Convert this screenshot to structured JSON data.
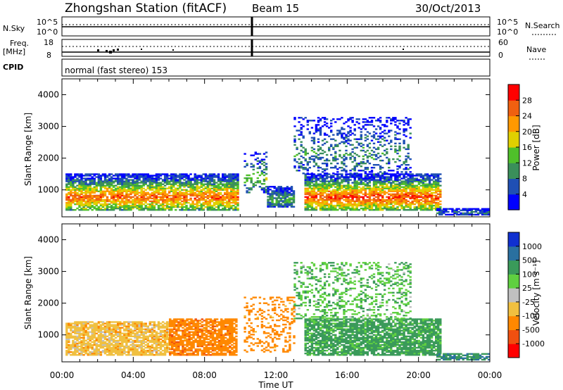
{
  "header": {
    "title": "Zhongshan Station (fitACF)",
    "beam": "Beam 15",
    "date": "30/Oct/2013"
  },
  "noise_panel": {
    "left_label": "N.Sky",
    "left_ticks": [
      "10^5",
      "10^0"
    ],
    "right_ticks": [
      "10^5",
      "10^0"
    ],
    "right_label": "N.Search"
  },
  "freq_panel": {
    "left_label_line1": "Freq.",
    "left_label_line2": "[MHz]",
    "left_ticks": [
      "18",
      "8"
    ],
    "right_ticks": [
      "60",
      "0"
    ],
    "right_label": "Nave",
    "cpid_label": "CPID"
  },
  "cpid_panel": {
    "text": "normal (fast stereo) 153"
  },
  "colors": {
    "power_scale": [
      "#0000ff",
      "#1f4fb4",
      "#3a8f5a",
      "#4fc02a",
      "#e0d000",
      "#ff9900",
      "#f06010",
      "#ff0000"
    ],
    "velocity_scale": [
      "#ff0000",
      "#f05010",
      "#ff8800",
      "#f0c040",
      "#c0c0c0",
      "#5fd040",
      "#3a9a5a",
      "#2a70a0",
      "#1030d0"
    ]
  },
  "chart_data": [
    {
      "type": "heatmap",
      "name": "power",
      "x": [
        "00:00",
        "04:00",
        "08:00",
        "12:00",
        "16:00",
        "20:00",
        "00:00"
      ],
      "xlabel": "Time UT",
      "ylabel": "Slant Range [km]",
      "yticks": [
        1000,
        2000,
        3000,
        4000
      ],
      "ylim": [
        150,
        4500
      ],
      "xlim_hours": [
        0,
        24
      ],
      "colorbar_label": "Power [dB]",
      "colorbar_ticks": [
        "4",
        "8",
        "12",
        "16",
        "20",
        "24",
        "28"
      ],
      "colorbar_range": [
        0,
        32
      ],
      "echo_regions": [
        {
          "t0": 0.2,
          "t1": 9.8,
          "r0": 350,
          "r1": 1500,
          "peak_dB": 26
        },
        {
          "t0": 10.2,
          "t1": 11.4,
          "r0": 900,
          "r1": 2200,
          "peak_dB": 14
        },
        {
          "t0": 11.5,
          "t1": 13.0,
          "r0": 450,
          "r1": 1100,
          "peak_dB": 12
        },
        {
          "t0": 13.6,
          "t1": 21.2,
          "r0": 350,
          "r1": 1500,
          "peak_dB": 28
        },
        {
          "t0": 13.0,
          "t1": 19.5,
          "r0": 1500,
          "r1": 3300,
          "peak_dB": 10
        },
        {
          "t0": 21.0,
          "t1": 24.0,
          "r0": 200,
          "r1": 420,
          "peak_dB": 8
        }
      ]
    },
    {
      "type": "heatmap",
      "name": "velocity",
      "x": [
        "00:00",
        "04:00",
        "08:00",
        "12:00",
        "16:00",
        "20:00",
        "00:00"
      ],
      "xlabel": "Time UT",
      "ylabel": "Slant Range [km]",
      "yticks": [
        1000,
        2000,
        3000,
        4000
      ],
      "ylim": [
        150,
        4500
      ],
      "xlim_hours": [
        0,
        24
      ],
      "colorbar_label": "Velocity [m s⁻¹]",
      "colorbar_ticks": [
        "-1000",
        "-500",
        "-100",
        "-25",
        "25",
        "100",
        "500",
        "1000"
      ],
      "echo_regions": [
        {
          "t0": 0.2,
          "t1": 6.0,
          "r0": 350,
          "r1": 1400,
          "velocity": -60
        },
        {
          "t0": 6.0,
          "t1": 9.8,
          "r0": 350,
          "r1": 1500,
          "velocity": -300
        },
        {
          "t0": 10.2,
          "t1": 13.0,
          "r0": 450,
          "r1": 2200,
          "velocity": -250
        },
        {
          "t0": 13.6,
          "t1": 21.2,
          "r0": 350,
          "r1": 1500,
          "velocity": 150
        },
        {
          "t0": 13.0,
          "t1": 19.5,
          "r0": 1500,
          "r1": 3300,
          "velocity": 80
        },
        {
          "t0": 21.0,
          "t1": 24.0,
          "r0": 200,
          "r1": 420,
          "velocity": 400
        }
      ]
    }
  ]
}
